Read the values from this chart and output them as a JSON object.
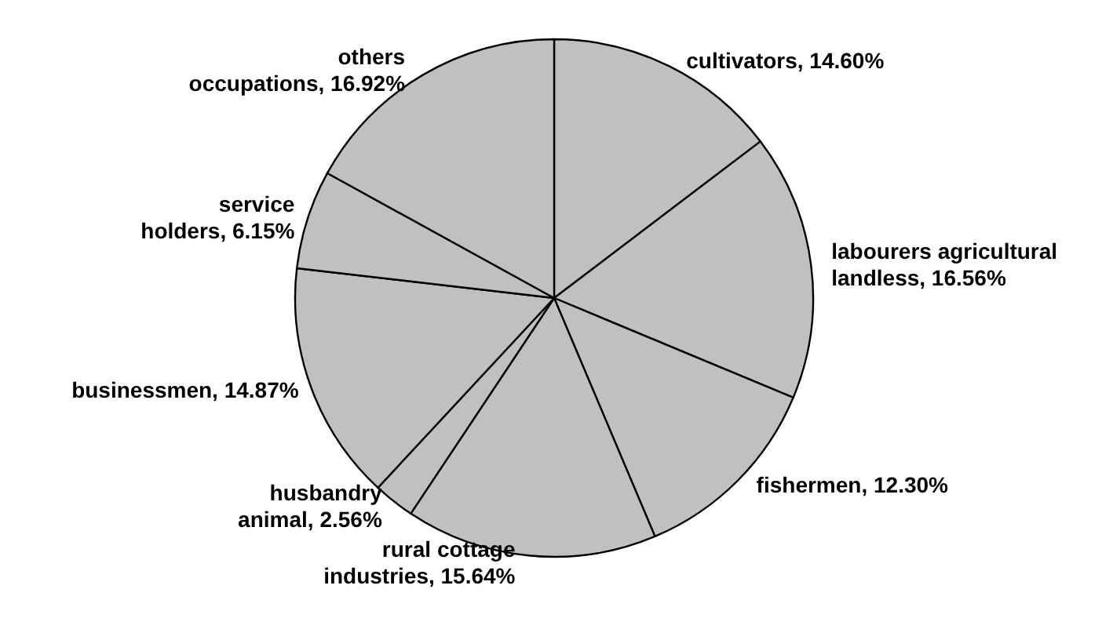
{
  "chart_data": {
    "type": "pie",
    "categories": [
      "cultivators",
      "labourers agricultural landless",
      "fishermen",
      "rural cottage industries",
      "husbandry animal",
      "businessmen",
      "service holders",
      "others occupations"
    ],
    "values": [
      14.6,
      16.56,
      12.3,
      15.64,
      2.56,
      14.87,
      6.15,
      16.92
    ],
    "value_labels": [
      "14.60%",
      "16.56%",
      "12.30%",
      "15.64%",
      "2.56%",
      "14.87%",
      "6.15%",
      "16.92%"
    ],
    "colors": [
      "#c0c0c0",
      "#c0c0c0",
      "#c0c0c0",
      "#c0c0c0",
      "#c0c0c0",
      "#c0c0c0",
      "#c0c0c0",
      "#c0c0c0"
    ],
    "data_labels": true
  }
}
